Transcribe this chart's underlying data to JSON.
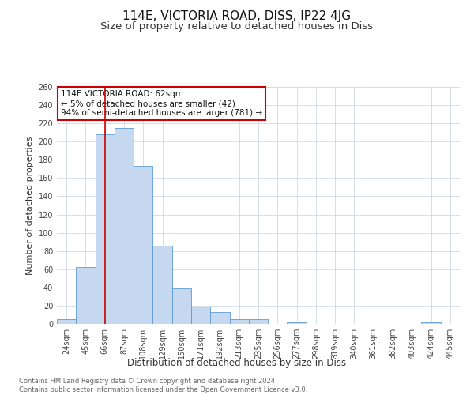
{
  "title": "114E, VICTORIA ROAD, DISS, IP22 4JG",
  "subtitle": "Size of property relative to detached houses in Diss",
  "xlabel": "Distribution of detached houses by size in Diss",
  "ylabel": "Number of detached properties",
  "bin_labels": [
    "24sqm",
    "45sqm",
    "66sqm",
    "87sqm",
    "108sqm",
    "129sqm",
    "150sqm",
    "171sqm",
    "192sqm",
    "213sqm",
    "235sqm",
    "256sqm",
    "277sqm",
    "298sqm",
    "319sqm",
    "340sqm",
    "361sqm",
    "382sqm",
    "403sqm",
    "424sqm",
    "445sqm"
  ],
  "bar_heights": [
    5,
    62,
    208,
    215,
    173,
    86,
    39,
    19,
    13,
    5,
    5,
    0,
    2,
    0,
    0,
    0,
    0,
    0,
    0,
    2,
    0
  ],
  "bar_color": "#c5d8f0",
  "bar_edge_color": "#5b9bd5",
  "vline_x": 2,
  "vline_color": "#cc0000",
  "annotation_line1": "114E VICTORIA ROAD: 62sqm",
  "annotation_line2": "← 5% of detached houses are smaller (42)",
  "annotation_line3": "94% of semi-detached houses are larger (781) →",
  "annotation_box_facecolor": "white",
  "annotation_box_edgecolor": "#cc0000",
  "ylim": [
    0,
    260
  ],
  "yticks": [
    0,
    20,
    40,
    60,
    80,
    100,
    120,
    140,
    160,
    180,
    200,
    220,
    240,
    260
  ],
  "grid_color": "#d0d8e8",
  "footer_text": "Contains HM Land Registry data © Crown copyright and database right 2024.\nContains public sector information licensed under the Open Government Licence v3.0.",
  "title_fontsize": 11,
  "subtitle_fontsize": 9.5,
  "xlabel_fontsize": 8.5,
  "ylabel_fontsize": 8,
  "tick_fontsize": 7,
  "annotation_fontsize": 7.5,
  "footer_fontsize": 6
}
